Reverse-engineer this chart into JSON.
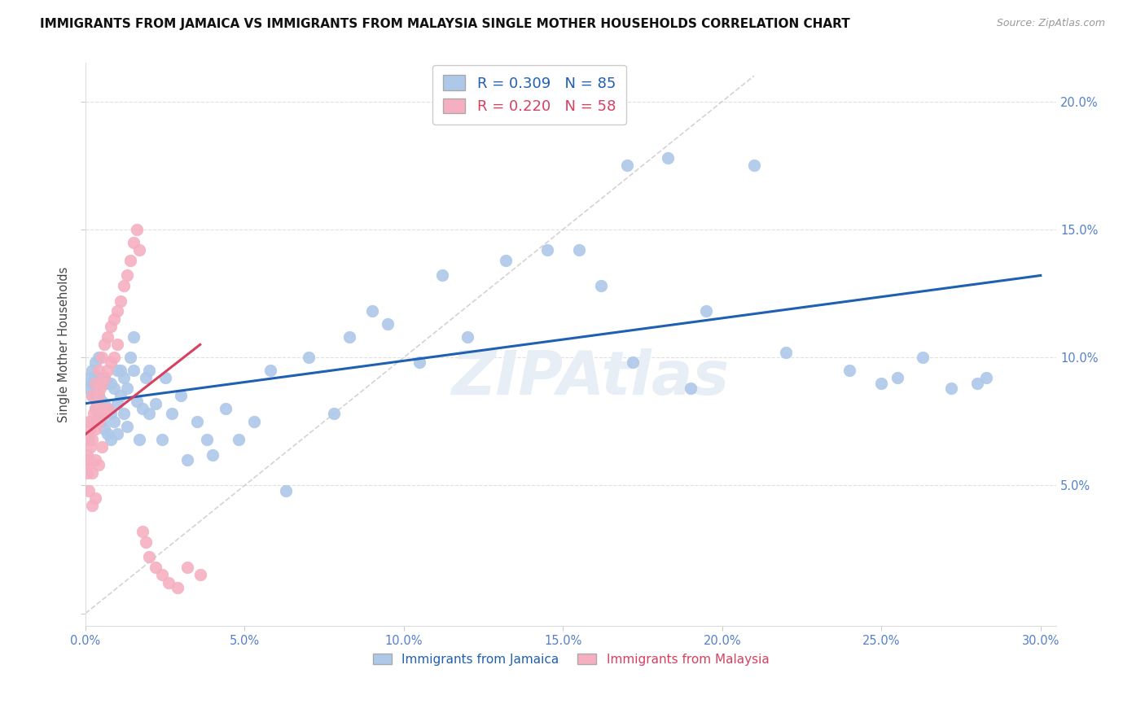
{
  "title": "IMMIGRANTS FROM JAMAICA VS IMMIGRANTS FROM MALAYSIA SINGLE MOTHER HOUSEHOLDS CORRELATION CHART",
  "source": "Source: ZipAtlas.com",
  "ylabel": "Single Mother Households",
  "jamaica_R": 0.309,
  "jamaica_N": 85,
  "malaysia_R": 0.22,
  "malaysia_N": 58,
  "jamaica_color": "#adc8e8",
  "malaysia_color": "#f5afc0",
  "jamaica_line_color": "#2060b0",
  "malaysia_line_color": "#d84060",
  "diag_line_color": "#c8c8c8",
  "grid_color": "#e0e0e0",
  "watermark": "ZIPAtlas",
  "watermark_color": "#e8eef5",
  "xlim": [
    0.0,
    0.305
  ],
  "ylim": [
    -0.005,
    0.215
  ],
  "x_ticks": [
    0.0,
    0.05,
    0.1,
    0.15,
    0.2,
    0.25,
    0.3
  ],
  "y_ticks": [
    0.0,
    0.05,
    0.1,
    0.15,
    0.2
  ],
  "tick_color": "#5580cc",
  "title_color": "#111111",
  "source_color": "#999999",
  "ylabel_color": "#444444",
  "jamaica_line_x": [
    0.0,
    0.3
  ],
  "jamaica_line_y": [
    0.082,
    0.132
  ],
  "malaysia_line_x": [
    0.0,
    0.036
  ],
  "malaysia_line_y": [
    0.07,
    0.105
  ],
  "jamaica_pts_x": [
    0.001,
    0.001,
    0.002,
    0.002,
    0.002,
    0.003,
    0.003,
    0.003,
    0.003,
    0.004,
    0.004,
    0.004,
    0.004,
    0.005,
    0.005,
    0.005,
    0.006,
    0.006,
    0.006,
    0.007,
    0.007,
    0.007,
    0.008,
    0.008,
    0.008,
    0.009,
    0.009,
    0.01,
    0.01,
    0.01,
    0.011,
    0.011,
    0.012,
    0.012,
    0.013,
    0.013,
    0.014,
    0.015,
    0.015,
    0.016,
    0.017,
    0.018,
    0.019,
    0.02,
    0.02,
    0.022,
    0.024,
    0.025,
    0.027,
    0.03,
    0.032,
    0.035,
    0.038,
    0.04,
    0.044,
    0.048,
    0.053,
    0.058,
    0.063,
    0.07,
    0.078,
    0.083,
    0.09,
    0.095,
    0.105,
    0.112,
    0.12,
    0.132,
    0.145,
    0.155,
    0.162,
    0.172,
    0.183,
    0.195,
    0.21,
    0.22,
    0.24,
    0.255,
    0.263,
    0.272,
    0.283,
    0.25,
    0.19,
    0.17,
    0.28
  ],
  "jamaica_pts_y": [
    0.088,
    0.092,
    0.085,
    0.09,
    0.095,
    0.08,
    0.086,
    0.092,
    0.098,
    0.078,
    0.085,
    0.092,
    0.1,
    0.075,
    0.083,
    0.092,
    0.072,
    0.082,
    0.092,
    0.07,
    0.08,
    0.09,
    0.068,
    0.078,
    0.09,
    0.075,
    0.088,
    0.07,
    0.082,
    0.095,
    0.085,
    0.095,
    0.078,
    0.092,
    0.073,
    0.088,
    0.1,
    0.095,
    0.108,
    0.083,
    0.068,
    0.08,
    0.092,
    0.078,
    0.095,
    0.082,
    0.068,
    0.092,
    0.078,
    0.085,
    0.06,
    0.075,
    0.068,
    0.062,
    0.08,
    0.068,
    0.075,
    0.095,
    0.048,
    0.1,
    0.078,
    0.108,
    0.118,
    0.113,
    0.098,
    0.132,
    0.108,
    0.138,
    0.142,
    0.142,
    0.128,
    0.098,
    0.178,
    0.118,
    0.175,
    0.102,
    0.095,
    0.092,
    0.1,
    0.088,
    0.092,
    0.09,
    0.088,
    0.175,
    0.09
  ],
  "malaysia_pts_x": [
    0.0005,
    0.0005,
    0.0008,
    0.001,
    0.001,
    0.001,
    0.001,
    0.0012,
    0.0015,
    0.002,
    0.002,
    0.002,
    0.002,
    0.002,
    0.0025,
    0.003,
    0.003,
    0.003,
    0.003,
    0.003,
    0.0035,
    0.004,
    0.004,
    0.004,
    0.004,
    0.0045,
    0.005,
    0.005,
    0.005,
    0.005,
    0.006,
    0.006,
    0.006,
    0.007,
    0.007,
    0.007,
    0.008,
    0.008,
    0.009,
    0.009,
    0.01,
    0.01,
    0.011,
    0.012,
    0.013,
    0.014,
    0.015,
    0.016,
    0.017,
    0.018,
    0.019,
    0.02,
    0.022,
    0.024,
    0.026,
    0.029,
    0.032,
    0.036
  ],
  "malaysia_pts_y": [
    0.062,
    0.055,
    0.058,
    0.068,
    0.075,
    0.06,
    0.048,
    0.072,
    0.065,
    0.085,
    0.075,
    0.068,
    0.055,
    0.042,
    0.078,
    0.09,
    0.08,
    0.072,
    0.06,
    0.045,
    0.082,
    0.095,
    0.085,
    0.075,
    0.058,
    0.088,
    0.1,
    0.09,
    0.08,
    0.065,
    0.105,
    0.092,
    0.078,
    0.108,
    0.095,
    0.08,
    0.112,
    0.098,
    0.115,
    0.1,
    0.118,
    0.105,
    0.122,
    0.128,
    0.132,
    0.138,
    0.145,
    0.15,
    0.142,
    0.032,
    0.028,
    0.022,
    0.018,
    0.015,
    0.012,
    0.01,
    0.018,
    0.015
  ]
}
